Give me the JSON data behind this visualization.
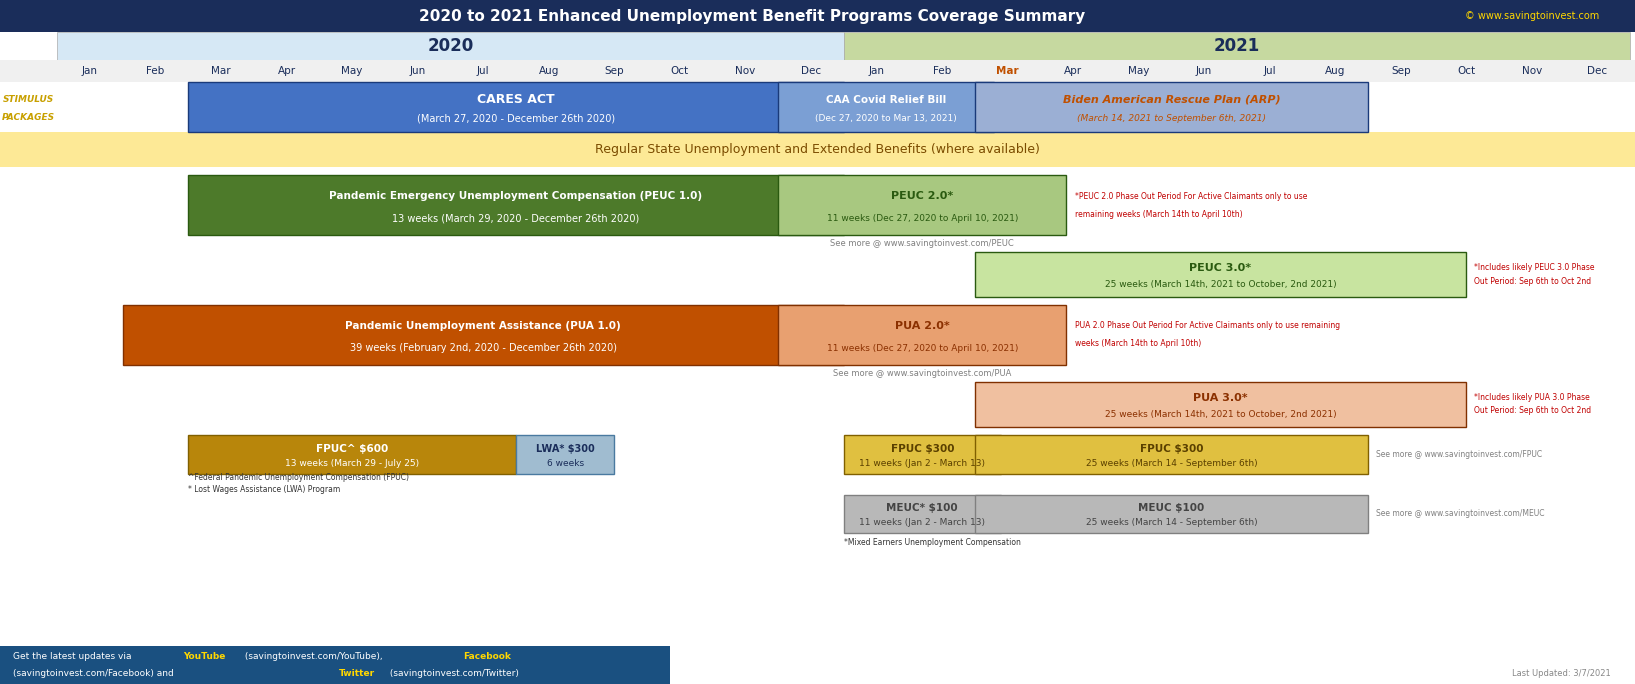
{
  "title": "2020 to 2021 Enhanced Unemployment Benefit Programs Coverage Summary",
  "copyright": "© www.savingtoinvest.com",
  "last_updated": "Last Updated: 3/7/2021",
  "figsize": [
    16.35,
    6.84
  ],
  "dpi": 100,
  "colors": {
    "header_bg": "#1a2d5a",
    "header_text": "#ffffff",
    "year2020_bg": "#d6e8f5",
    "year2021_bg": "#c6d9a0",
    "month_text": "#1a2d5a",
    "stimulus_label_color": "#c8a000",
    "cares_bg": "#4472c4",
    "cares_text": "#ffffff",
    "caa_bg": "#7b9fd4",
    "caa_text": "#ffffff",
    "arp_bg": "#9bafd4",
    "arp_text": "#c05000",
    "regular_bg": "#fde996",
    "regular_text": "#7b4c00",
    "peuc1_bg": "#4d7a2a",
    "peuc1_text": "#ffffff",
    "peuc2_bg": "#a8c880",
    "peuc2_text": "#2a5a10",
    "peuc3_bg": "#c8e4a0",
    "peuc3_text": "#2a5a10",
    "note_red": "#c00000",
    "pua1_bg": "#c05000",
    "pua1_text": "#ffffff",
    "pua2_bg": "#e8a070",
    "pua2_text": "#8b3000",
    "pua3_bg": "#f0c0a0",
    "pua3_text": "#8b3000",
    "fpuc600_bg": "#b8860b",
    "fpuc600_text": "#ffffff",
    "lwa_bg": "#a0bcd0",
    "lwa_text": "#1a2d5a",
    "fpuc300_bg": "#e0c040",
    "fpuc300_text": "#5a4000",
    "meuc_bg": "#b8b8b8",
    "meuc_text": "#444444",
    "bottom_bg": "#1a5080",
    "bottom_text": "#ffffff",
    "see_more_text": "#808080",
    "footnote_text": "#333333",
    "last_updated_text": "#888888"
  }
}
